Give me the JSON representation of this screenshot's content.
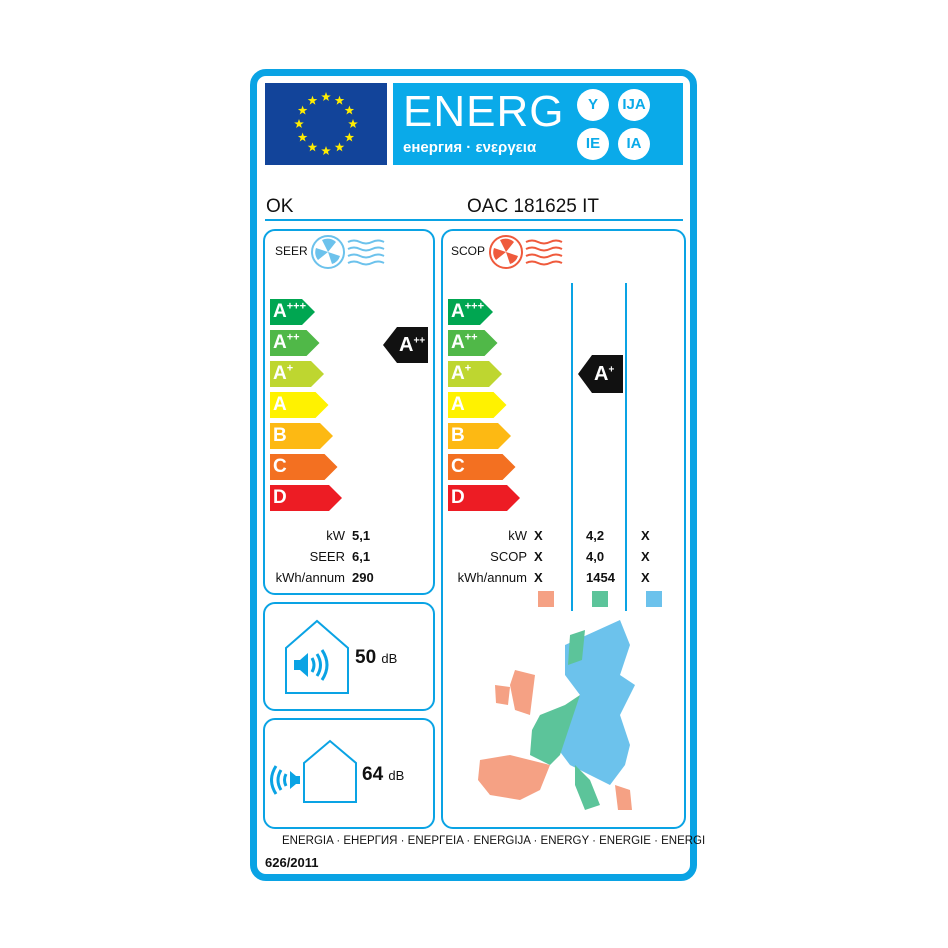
{
  "header": {
    "energy_word": "ENERG",
    "languages_line": "енергия · ενεργεια",
    "suffixes": [
      "Y",
      "IJA",
      "IE",
      "IA"
    ]
  },
  "supplier": "OK",
  "model": "OAC 181625 IT",
  "colors": {
    "border": "#0aa3e4",
    "flag": "#12449a",
    "warm": "#f5a184",
    "average": "#5cc49a",
    "cold": "#6cc2ec"
  },
  "scale": [
    {
      "c": "A",
      "p": "+++",
      "color": "#00a651"
    },
    {
      "c": "A",
      "p": "++",
      "color": "#50b848"
    },
    {
      "c": "A",
      "p": "+",
      "color": "#bed630"
    },
    {
      "c": "A",
      "p": "",
      "color": "#fff200"
    },
    {
      "c": "B",
      "p": "",
      "color": "#fdb913"
    },
    {
      "c": "C",
      "p": "",
      "color": "#f37021"
    },
    {
      "c": "D",
      "p": "",
      "color": "#ed1c24"
    }
  ],
  "seer": {
    "title": "SEER",
    "icon": "fan-cold-icon",
    "class": "A",
    "class_plus": "++",
    "rows": [
      {
        "label": "kW",
        "value": "5,1"
      },
      {
        "label": "SEER",
        "value": "6,1"
      },
      {
        "label": "kWh/annum",
        "value": "290"
      }
    ]
  },
  "scop": {
    "title": "SCOP",
    "icon": "fan-heat-icon",
    "class": "A",
    "class_plus": "+",
    "rows": [
      {
        "label": "kW",
        "warm": "X",
        "average": "4,2",
        "cold": "X"
      },
      {
        "label": "SCOP",
        "warm": "X",
        "average": "4,0",
        "cold": "X"
      },
      {
        "label": "kWh/annum",
        "warm": "X",
        "average": "1454",
        "cold": "X"
      }
    ]
  },
  "noise_indoor": {
    "value": "50",
    "unit": "dB"
  },
  "noise_outdoor": {
    "value": "64",
    "unit": "dB"
  },
  "footer": {
    "languages": "ENERGIA · ЕНЕРГИЯ · ΕΝΕΡΓΕΙΑ · ENERGIJA · ENERGY · ENERGIE · ENERGI",
    "regulation": "626/2011"
  }
}
